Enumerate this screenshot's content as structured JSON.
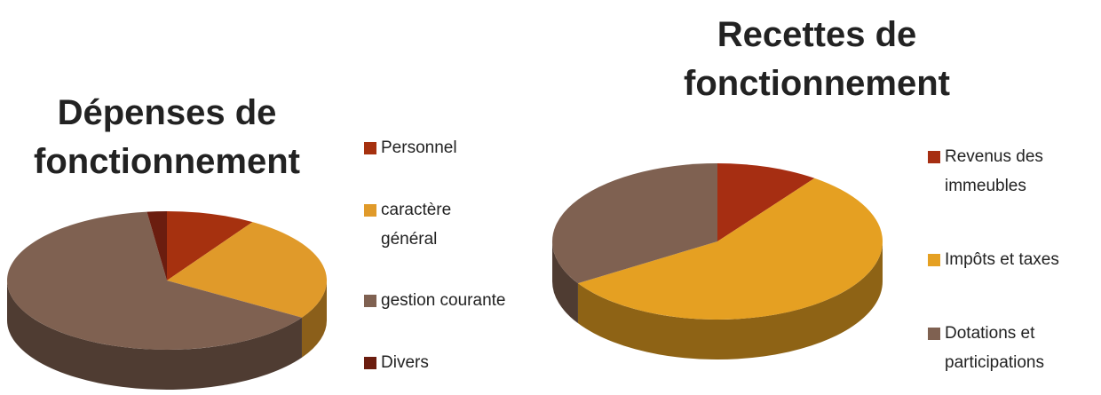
{
  "chart_data": [
    {
      "type": "pie",
      "title": "Dépenses de fonctionnement",
      "categories": [
        "Personnel",
        "caractère général",
        "gestion courante",
        "Divers"
      ],
      "values": [
        9,
        25,
        64,
        2
      ],
      "colors": [
        "#a6310f",
        "#e09a2a",
        "#7f6151",
        "#6b1d0f"
      ]
    },
    {
      "type": "pie",
      "title": "Recettes de fonctionnement",
      "categories": [
        "Revenus des immeubles",
        "Impôts et taxes",
        "Dotations et participations"
      ],
      "values": [
        10,
        56,
        34
      ],
      "colors": [
        "#a62e12",
        "#e5a022",
        "#7f6151"
      ]
    }
  ]
}
